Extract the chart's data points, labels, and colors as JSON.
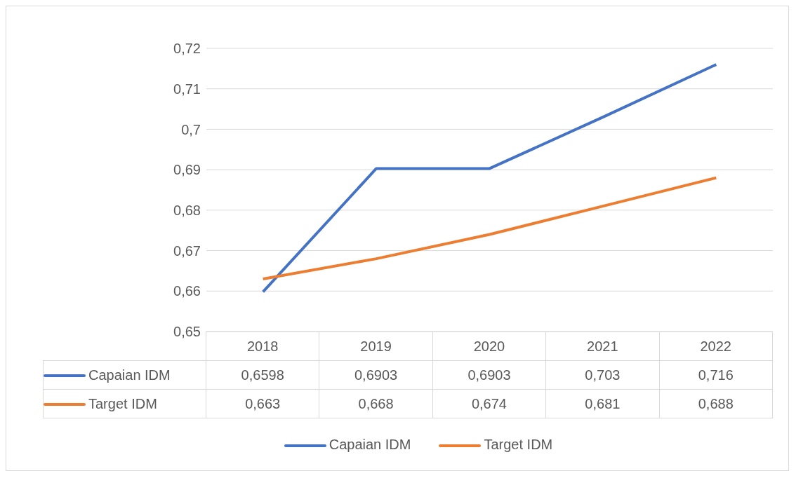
{
  "chart_data": {
    "type": "line",
    "categories": [
      "2018",
      "2019",
      "2020",
      "2021",
      "2022"
    ],
    "series": [
      {
        "name": "Capaian IDM",
        "color": "#4472c4",
        "values": [
          0.6598,
          0.6903,
          0.6903,
          0.703,
          0.716
        ],
        "value_labels": [
          "0,6598",
          "0,6903",
          "0,6903",
          "0,703",
          "0,716"
        ]
      },
      {
        "name": "Target IDM",
        "color": "#ed7d31",
        "values": [
          0.663,
          0.668,
          0.674,
          0.681,
          0.688
        ],
        "value_labels": [
          "0,663",
          "0,668",
          "0,674",
          "0,681",
          "0,688"
        ]
      }
    ],
    "ylim": [
      0.65,
      0.72
    ],
    "yticks": [
      {
        "value": 0.65,
        "label": "0,65"
      },
      {
        "value": 0.66,
        "label": "0,66"
      },
      {
        "value": 0.67,
        "label": "0,67"
      },
      {
        "value": 0.68,
        "label": "0,68"
      },
      {
        "value": 0.69,
        "label": "0,69"
      },
      {
        "value": 0.7,
        "label": "0,7"
      },
      {
        "value": 0.71,
        "label": "0,71"
      },
      {
        "value": 0.72,
        "label": "0,72"
      }
    ],
    "grid": "y",
    "legend": "bottom",
    "marker": "none",
    "line_style": "solid"
  }
}
